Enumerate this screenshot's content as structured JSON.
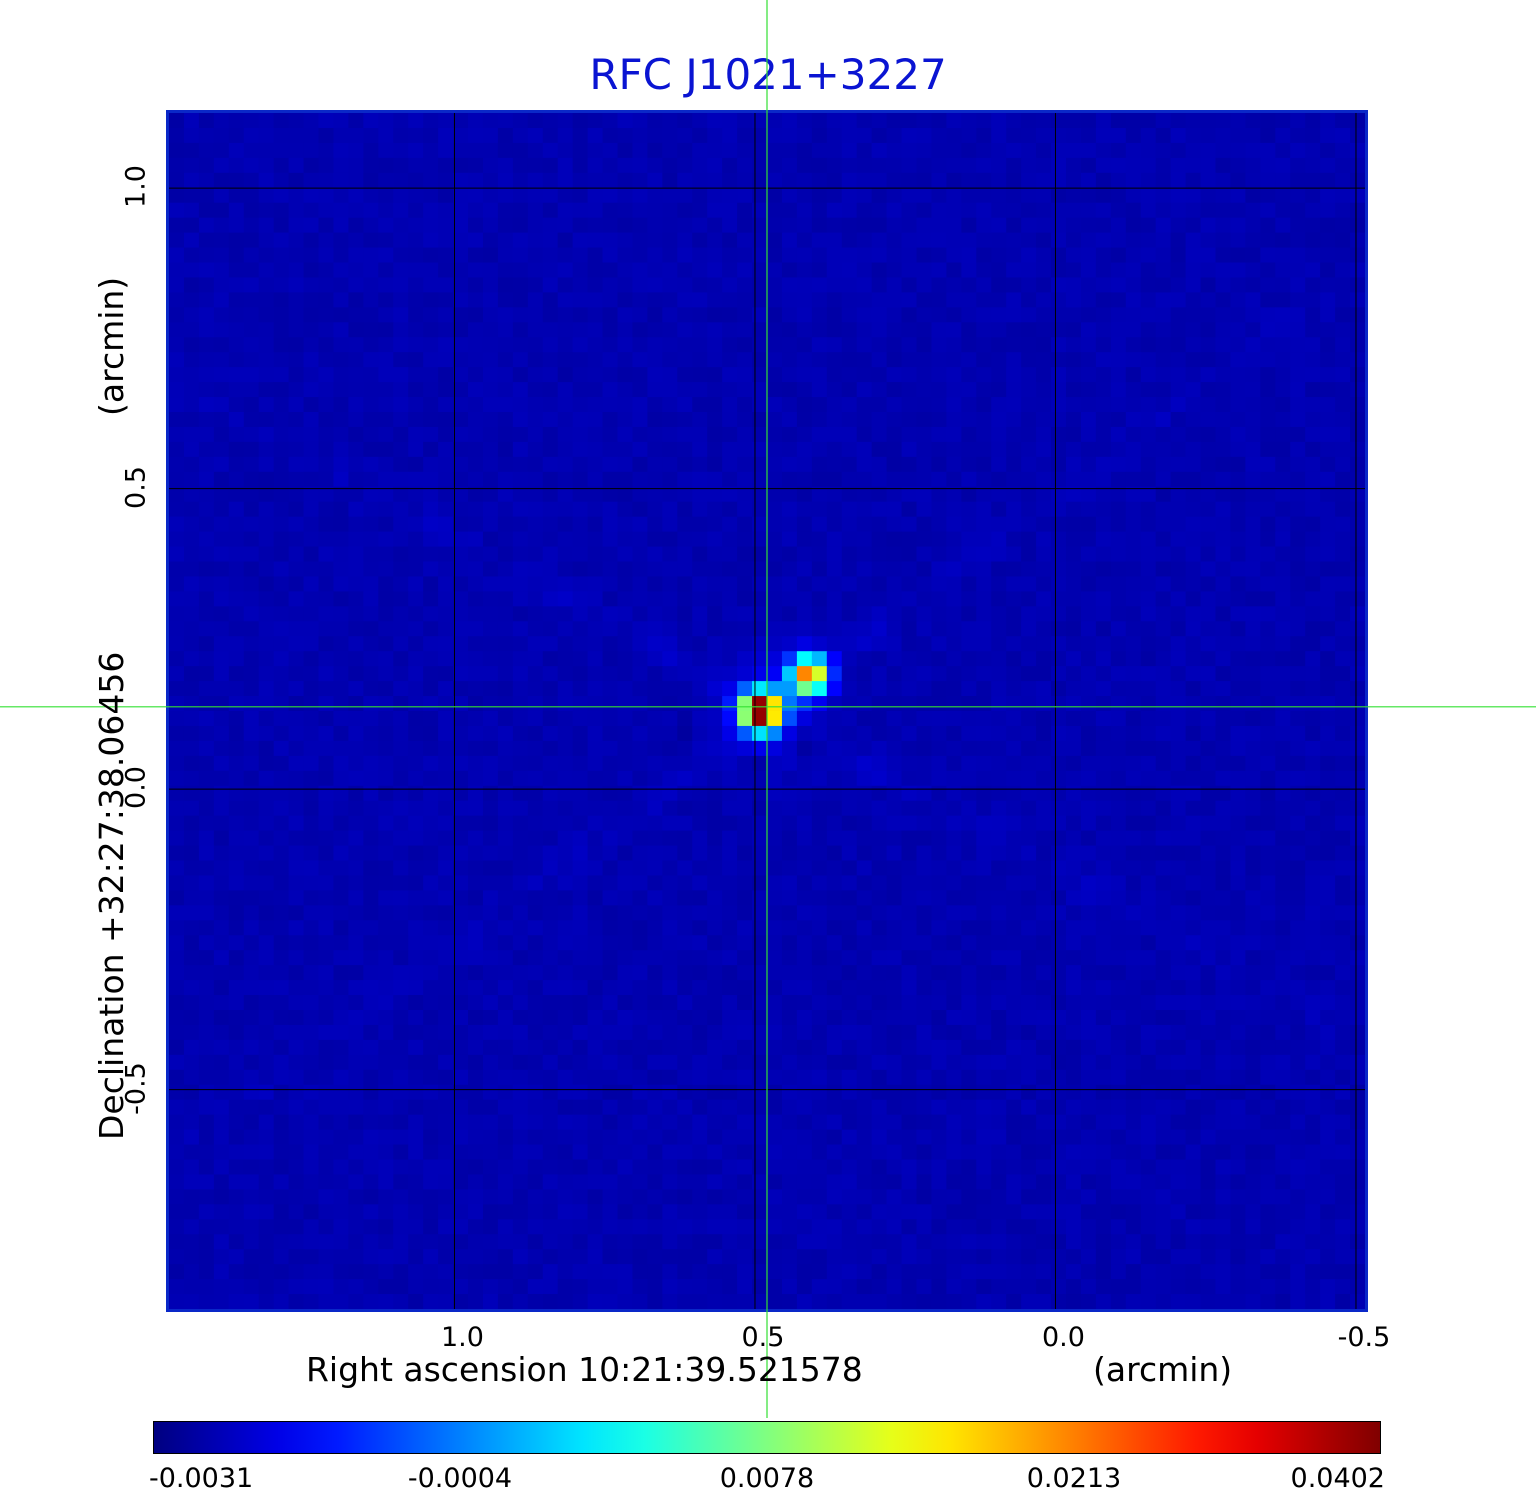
{
  "chart_data": {
    "type": "heatmap",
    "title": "RFC J1021+3227",
    "xlabel": "Right ascension  10:21:39.521578",
    "xunit": "(arcmin)",
    "ylabel": "Declination  +32:27:38.06456",
    "yunit": "(arcmin)",
    "xlim": [
      1.48,
      -0.52
    ],
    "ylim": [
      -0.87,
      1.13
    ],
    "xticks": [
      {
        "value": 1.0,
        "label": "1.0"
      },
      {
        "value": 0.5,
        "label": "0.5"
      },
      {
        "value": 0.0,
        "label": "0.0"
      },
      {
        "value": -0.5,
        "label": "-0.5"
      }
    ],
    "yticks": [
      {
        "value": 1.0,
        "label": "1.0"
      },
      {
        "value": 0.5,
        "label": "0.5"
      },
      {
        "value": 0.0,
        "label": "0.0"
      },
      {
        "value": -0.5,
        "label": "-0.5"
      }
    ],
    "grid": true,
    "crosshair": {
      "x": 0.48,
      "y": 0.137
    },
    "colorbar": {
      "colormap": "jet",
      "min": -0.0031,
      "max": 0.0402,
      "ticks": [
        {
          "value": -0.0031,
          "label": "-0.0031"
        },
        {
          "value": -0.0004,
          "label": "-0.0004"
        },
        {
          "value": 0.0078,
          "label": "0.0078"
        },
        {
          "value": 0.0213,
          "label": "0.0213"
        },
        {
          "value": 0.0402,
          "label": "0.0402"
        }
      ]
    },
    "peaks": [
      {
        "x": 0.49,
        "y": 0.13,
        "value": 0.0402
      },
      {
        "x": 0.41,
        "y": 0.19,
        "value": 0.03
      },
      {
        "x": 0.425,
        "y": 0.085,
        "value": -0.0031
      },
      {
        "x": 0.5,
        "y": 0.04,
        "value": -0.0022
      },
      {
        "x": 0.62,
        "y": 0.09,
        "value": -0.0018
      }
    ]
  },
  "colors": {
    "title": "#0a14d2",
    "frame": "#0a28c8",
    "grid": "#000000",
    "crosshair": "#33e033",
    "background_level": "#139ff2"
  }
}
